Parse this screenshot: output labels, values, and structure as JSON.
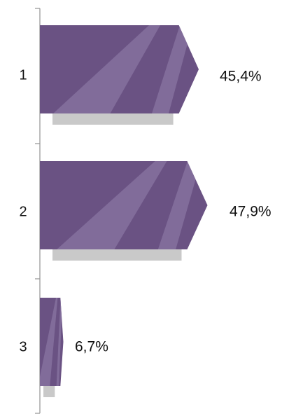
{
  "chart_data": {
    "type": "bar",
    "orientation": "horizontal",
    "categories": [
      "1",
      "2",
      "3"
    ],
    "values": [
      45.4,
      47.9,
      6.7
    ],
    "value_labels": [
      "45,4%",
      "47,9%",
      "6,7%"
    ],
    "unit": "%",
    "xlim": [
      0,
      50
    ],
    "grid": false,
    "legend": "none",
    "colors": {
      "bar": "#6a5283",
      "bar_dark": "#5f4a78",
      "stripe": "#8a76a2",
      "shadow": "#c9c9c9",
      "axis": "#9a9a9a",
      "text": "#111111"
    }
  }
}
